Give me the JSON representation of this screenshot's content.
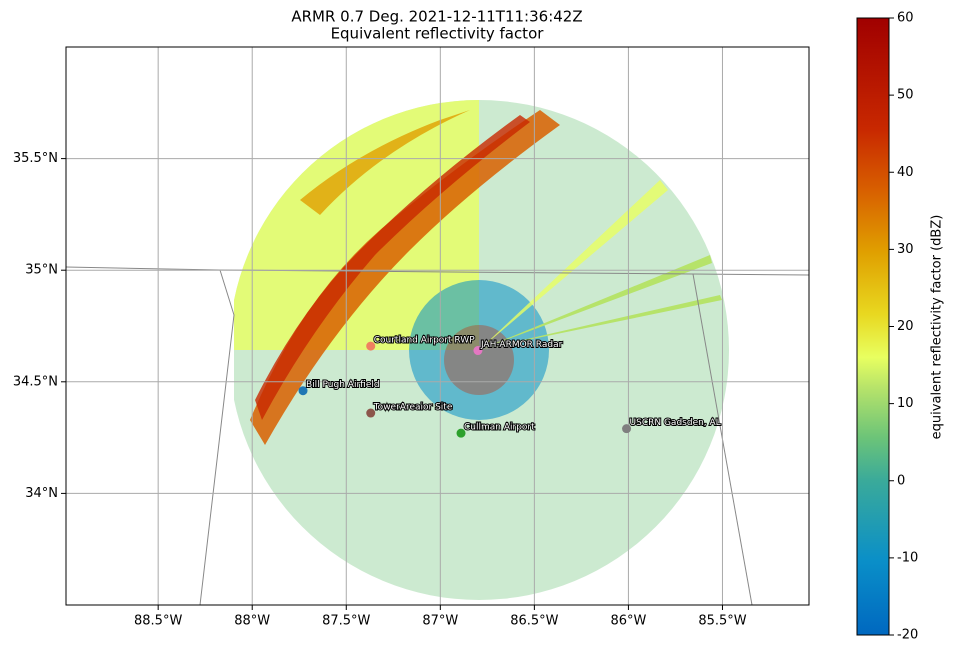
{
  "chart_data": {
    "type": "radar-map",
    "title": "ARMR 0.7 Deg. 2021-12-11T11:36:42Z",
    "subtitle": "Equivalent reflectivity factor",
    "xlim": [
      -88.99,
      -85.04
    ],
    "ylim": [
      33.5,
      36.0
    ],
    "xticks": [
      {
        "value": -88.5,
        "label": "88.5°W"
      },
      {
        "value": -88,
        "label": "88°W"
      },
      {
        "value": -87.5,
        "label": "87.5°W"
      },
      {
        "value": -87,
        "label": "87°W"
      },
      {
        "value": -86.5,
        "label": "86.5°W"
      },
      {
        "value": -86,
        "label": "86°W"
      },
      {
        "value": -85.5,
        "label": "85.5°W"
      }
    ],
    "yticks": [
      {
        "value": 34,
        "label": "34°N"
      },
      {
        "value": 34.5,
        "label": "34.5°N"
      },
      {
        "value": 35,
        "label": "35°N"
      },
      {
        "value": 35.5,
        "label": "35.5°N"
      }
    ],
    "grid": true,
    "points": [
      {
        "name": "Courtland Airport RWP",
        "x": -87.37,
        "y": 34.66,
        "color": "#f08060"
      },
      {
        "name": "JAH-ARMOR Radar",
        "x": -86.8,
        "y": 34.64,
        "color": "#e377c2"
      },
      {
        "name": "Bill Pugh Airfield",
        "x": -87.73,
        "y": 34.46,
        "color": "#1f77b4"
      },
      {
        "name": "TowerAreaior Site",
        "x": -87.37,
        "y": 34.36,
        "color": "#8c564b"
      },
      {
        "name": "Cullman Airport",
        "x": -86.89,
        "y": 34.27,
        "color": "#2ca02c"
      },
      {
        "name": "USCRN Gadsden, AL",
        "x": -86.01,
        "y": 34.29,
        "color": "#7f7f7f"
      }
    ],
    "colorbar": {
      "label": "equivalent reflectivity factor (dBZ)",
      "lim": [
        -20,
        60
      ],
      "ticks": [
        -20,
        -10,
        0,
        10,
        20,
        30,
        40,
        50,
        60
      ]
    }
  }
}
